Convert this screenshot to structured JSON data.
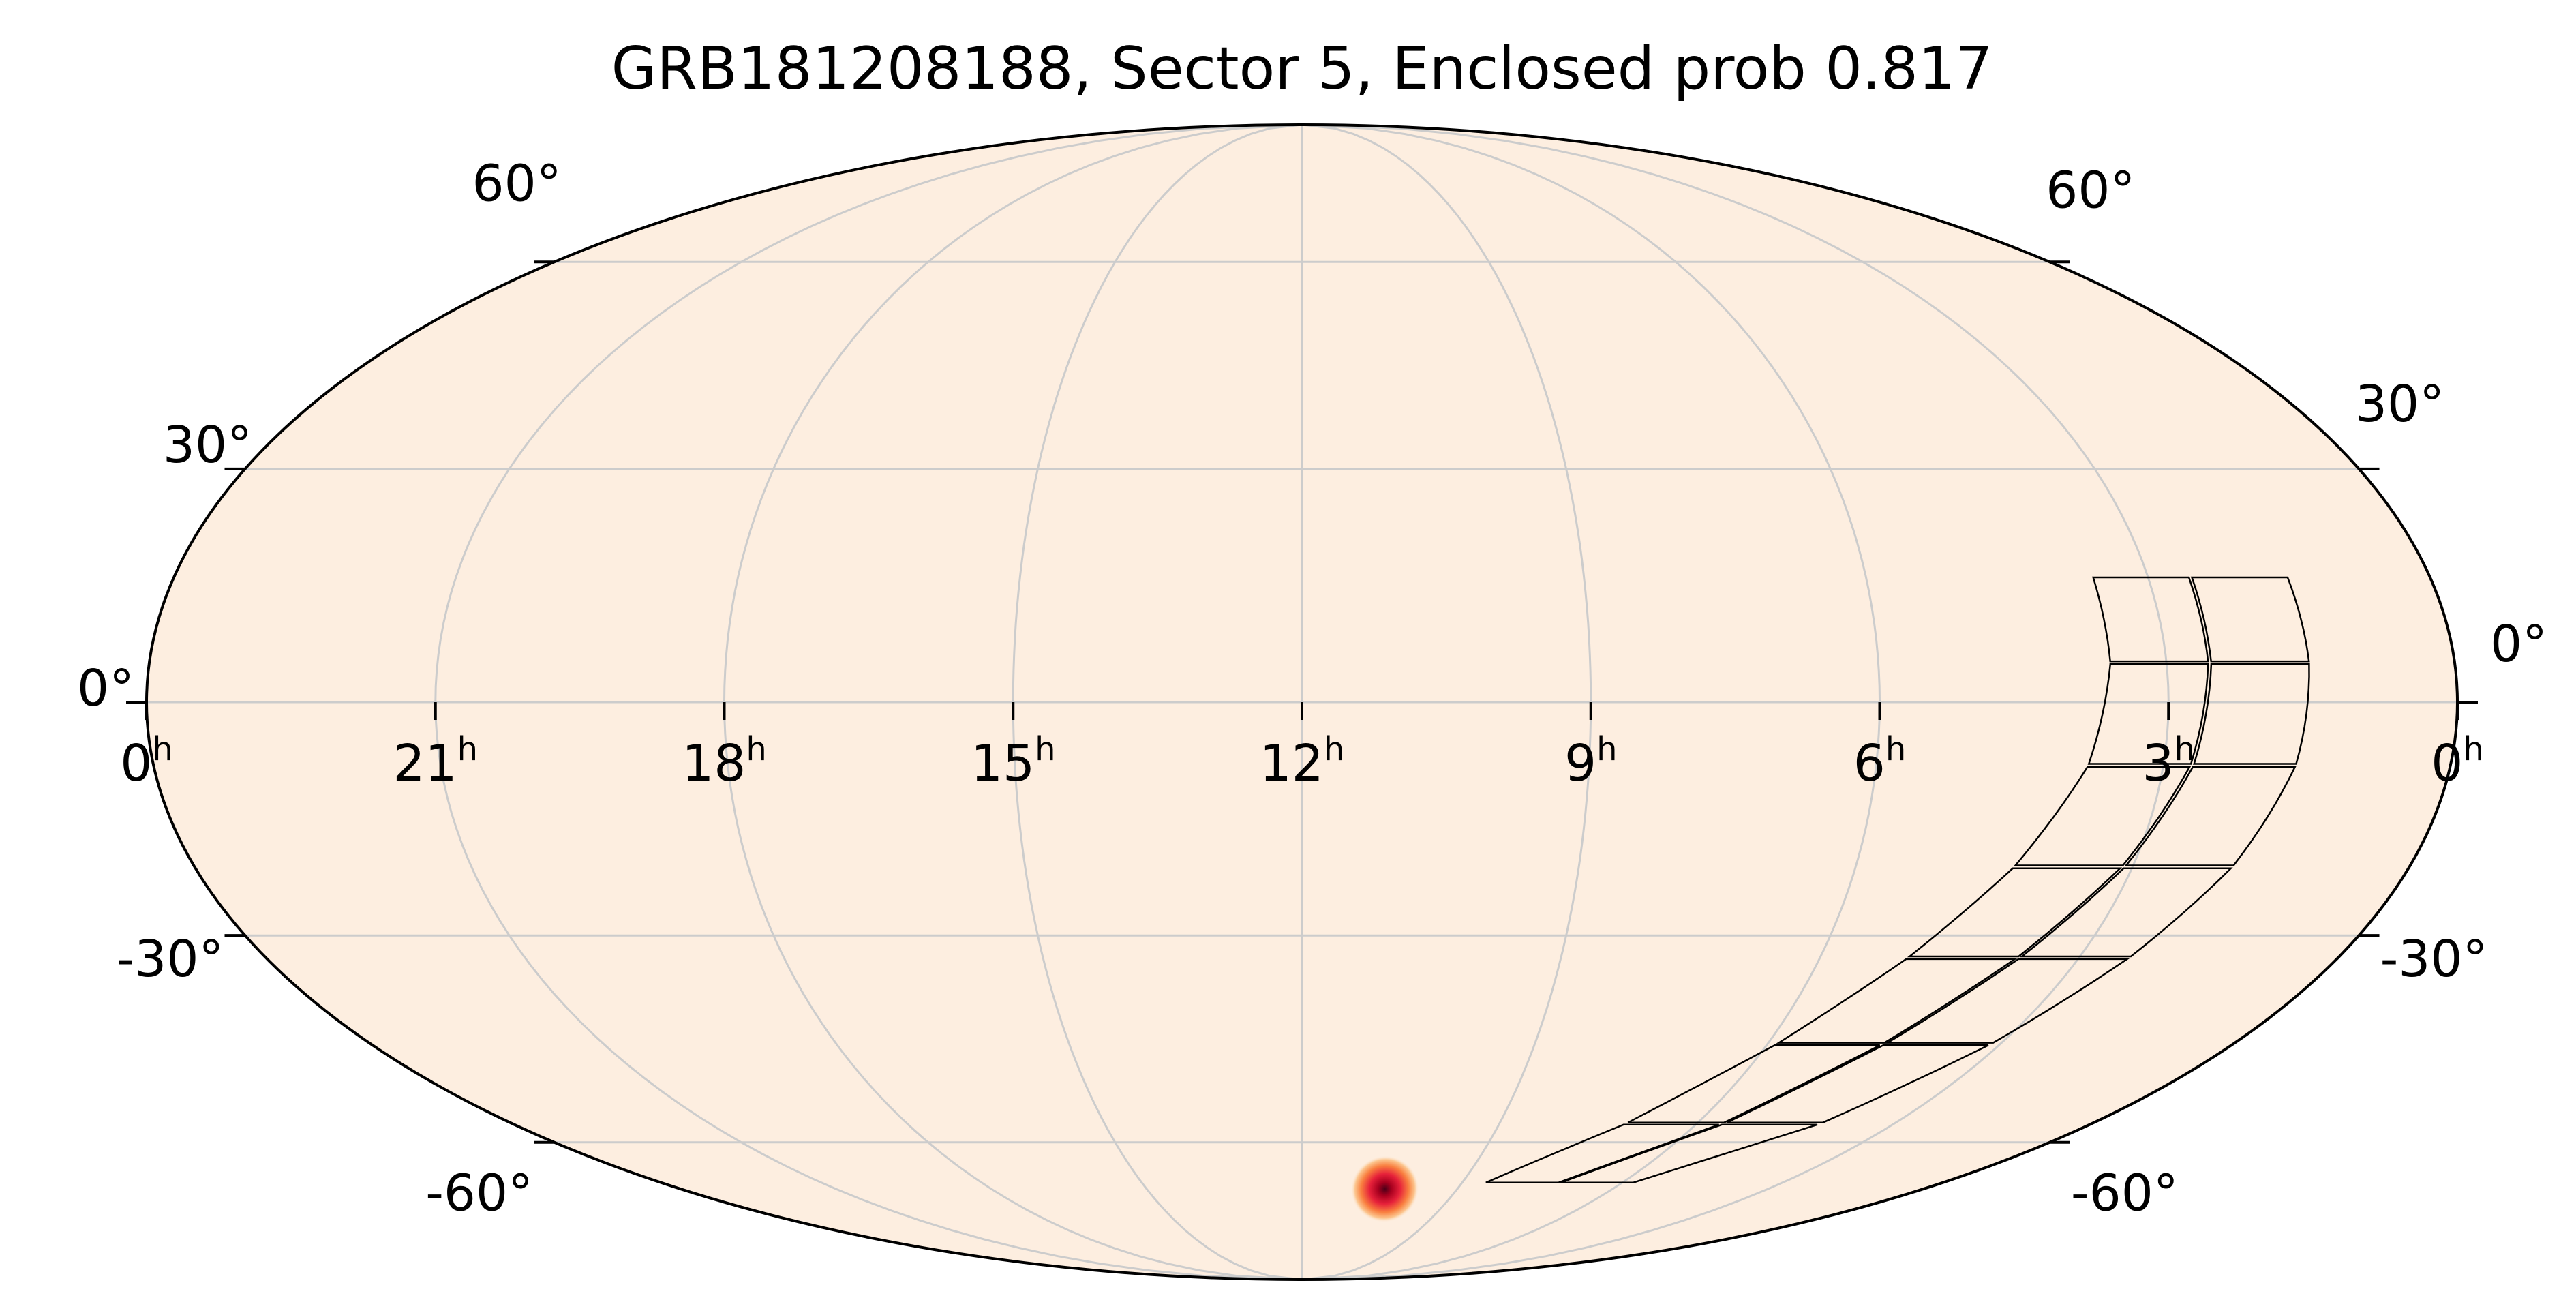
{
  "chart_data": {
    "type": "heatmap",
    "projection": "mollweide",
    "title": "GRB181208188, Sector 5, Enclosed prob 0.817",
    "grid": true,
    "colormap": "OrRd-style (cream to dark red)",
    "colors": {
      "background": "#fdeee0",
      "grid": "#cccccc",
      "outline": "#000000",
      "footprint": "#000000"
    },
    "ra_ticks": [
      {
        "ra_h": 24,
        "hour": "0",
        "sup": "h",
        "edge": "left"
      },
      {
        "ra_h": 21,
        "hour": "21",
        "sup": "h"
      },
      {
        "ra_h": 18,
        "hour": "18",
        "sup": "h"
      },
      {
        "ra_h": 15,
        "hour": "15",
        "sup": "h"
      },
      {
        "ra_h": 12,
        "hour": "12",
        "sup": "h"
      },
      {
        "ra_h": 9,
        "hour": "9",
        "sup": "h"
      },
      {
        "ra_h": 6,
        "hour": "6",
        "sup": "h"
      },
      {
        "ra_h": 3,
        "hour": "3",
        "sup": "h"
      },
      {
        "ra_h": 0,
        "hour": "0",
        "sup": "h",
        "edge": "right"
      }
    ],
    "dec_ticks": [
      {
        "dec": 60,
        "label": "60°"
      },
      {
        "dec": 30,
        "label": "30°"
      },
      {
        "dec": 0,
        "label": "0°"
      },
      {
        "dec": -30,
        "label": "-30°"
      },
      {
        "dec": -60,
        "label": "-60°"
      }
    ],
    "probability_peak": {
      "ra_h": 10.4,
      "dec": -68,
      "sigma_along_deg": 9,
      "sigma_across_deg": 3,
      "angle_deg": 25
    },
    "footprint_columns": [
      [
        [
          3.6,
          16
        ],
        [
          3.6,
          5
        ],
        [
          3.8,
          -8
        ],
        [
          4.3,
          -21
        ],
        [
          5.0,
          -33
        ],
        [
          5.9,
          -45
        ],
        [
          7.1,
          -57
        ],
        [
          8.6,
          -67
        ]
      ],
      [
        [
          2.55,
          16
        ],
        [
          2.55,
          5
        ],
        [
          2.7,
          -8
        ],
        [
          3.1,
          -21
        ],
        [
          3.7,
          -33
        ],
        [
          4.5,
          -45
        ],
        [
          5.6,
          -57
        ],
        [
          7.2,
          -67
        ]
      ],
      [
        [
          1.5,
          16
        ],
        [
          1.5,
          5
        ],
        [
          1.6,
          -8
        ],
        [
          1.9,
          -21
        ],
        [
          2.4,
          -33
        ],
        [
          3.1,
          -45
        ],
        [
          4.1,
          -57
        ],
        [
          5.8,
          -67
        ]
      ]
    ]
  }
}
